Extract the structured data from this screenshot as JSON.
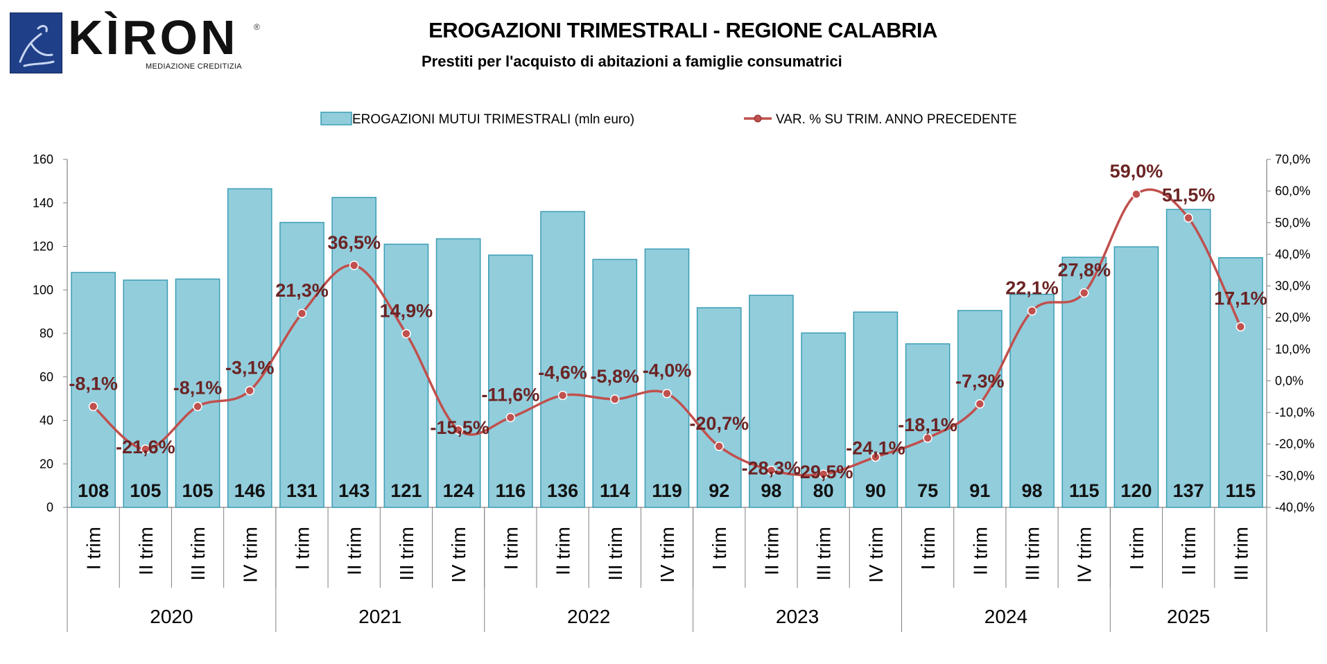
{
  "brand": {
    "name": "KÌRON",
    "tagline": "MEDIAZIONE CREDITIZIA",
    "reg_mark": "®"
  },
  "header": {
    "title": "EROGAZIONI TRIMESTRALI - REGIONE CALABRIA",
    "subtitle": "Prestiti per l'acquisto di abitazioni a famiglie consumatrici"
  },
  "colors": {
    "bar_fill": "#92cddc",
    "bar_stroke": "#3a9db5",
    "line": "#c0504d",
    "line_label": "#6b2424",
    "axis": "#808080"
  },
  "chart_data": {
    "type": "bar",
    "legend": {
      "position": "top"
    },
    "categories": [
      "I trim",
      "II trim",
      "III trim",
      "IV trim",
      "I trim",
      "II trim",
      "III trim",
      "IV trim",
      "I trim",
      "II trim",
      "III trim",
      "IV trim",
      "I trim",
      "II trim",
      "III trim",
      "IV trim",
      "I trim",
      "II trim",
      "III trim",
      "IV trim",
      "I trim",
      "II trim",
      "III trim"
    ],
    "groups": [
      {
        "label": "2020",
        "count": 4
      },
      {
        "label": "2021",
        "count": 4
      },
      {
        "label": "2022",
        "count": 4
      },
      {
        "label": "2023",
        "count": 4
      },
      {
        "label": "2024",
        "count": 4
      },
      {
        "label": "2025",
        "count": 3
      }
    ],
    "series": [
      {
        "name": "EROGAZIONI MUTUI TRIMESTRALI (mln euro)",
        "type": "bar",
        "axis": "left",
        "values": [
          108,
          105,
          105,
          146,
          131,
          143,
          121,
          124,
          116,
          136,
          114,
          119,
          92,
          98,
          80,
          90,
          75,
          91,
          98,
          115,
          120,
          137,
          115
        ],
        "plot_values": [
          108,
          104.5,
          105,
          146.5,
          131,
          142.5,
          121,
          123.5,
          116,
          136,
          114,
          118.8,
          91.8,
          97.5,
          80.2,
          89.8,
          75.2,
          90.5,
          98,
          115,
          119.8,
          137,
          114.8
        ],
        "labels": [
          "108",
          "105",
          "105",
          "146",
          "131",
          "143",
          "121",
          "124",
          "116",
          "136",
          "114",
          "119",
          "92",
          "98",
          "80",
          "90",
          "75",
          "91",
          "98",
          "115",
          "120",
          "137",
          "115"
        ]
      },
      {
        "name": "VAR. % SU TRIM. ANNO PRECEDENTE",
        "type": "line",
        "axis": "right",
        "values": [
          -8.1,
          -21.6,
          -8.1,
          -3.1,
          21.3,
          36.5,
          14.9,
          -15.5,
          -11.6,
          -4.6,
          -5.8,
          -4.0,
          -20.7,
          -28.3,
          -29.5,
          -24.1,
          -18.1,
          -7.3,
          22.1,
          27.8,
          59.0,
          51.5,
          17.1
        ],
        "labels": [
          "-8,1%",
          "-21,6%",
          "-8,1%",
          "-3,1%",
          "21,3%",
          "36,5%",
          "14,9%",
          "-15,5%",
          "-11,6%",
          "-4,6%",
          "-5,8%",
          "-4,0%",
          "-20,7%",
          "-28,3%",
          "-29,5%",
          "-24,1%",
          "-18,1%",
          "-7,3%",
          "22,1%",
          "27,8%",
          "59,0%",
          "51,5%",
          "17,1%"
        ]
      }
    ],
    "y_left": {
      "min": 0,
      "max": 160,
      "step": 20,
      "ticks": [
        "0",
        "20",
        "40",
        "60",
        "80",
        "100",
        "120",
        "140",
        "160"
      ]
    },
    "y_right": {
      "min": -40,
      "max": 70,
      "step": 10,
      "ticks": [
        "-40,0%",
        "-30,0%",
        "-20,0%",
        "-10,0%",
        "0,0%",
        "10,0%",
        "20,0%",
        "30,0%",
        "40,0%",
        "50,0%",
        "60,0%",
        "70,0%"
      ]
    }
  }
}
